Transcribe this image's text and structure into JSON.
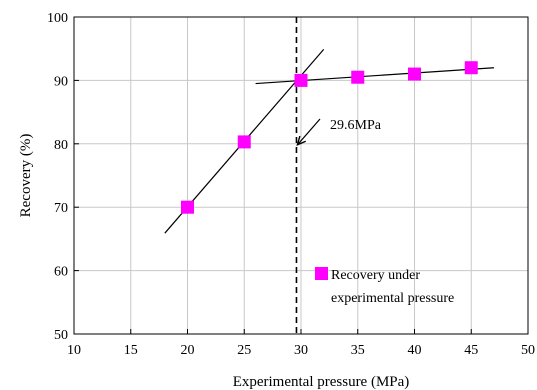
{
  "chart_data": {
    "type": "scatter",
    "xlabel": "Experimental pressure (MPa)",
    "ylabel": "Recovery (%)",
    "xlim": [
      10,
      50
    ],
    "ylim": [
      50,
      100
    ],
    "xticks": [
      "10",
      "15",
      "20",
      "25",
      "30",
      "35",
      "40",
      "45",
      "50"
    ],
    "yticks": [
      "50",
      "60",
      "70",
      "80",
      "90",
      "100"
    ],
    "grid": true,
    "series": [
      {
        "name": "Recovery under experimental pressure",
        "marker": "square",
        "color": "#ff00ff",
        "x": [
          20,
          25,
          30,
          35,
          40,
          45
        ],
        "y": [
          70,
          80.3,
          90,
          90.5,
          91,
          92
        ]
      }
    ],
    "fit_lines": [
      {
        "from": [
          18,
          65.9
        ],
        "to": [
          32,
          94.9
        ]
      },
      {
        "from": [
          26,
          89.5
        ],
        "to": [
          47,
          92
        ]
      }
    ],
    "vertical_line": {
      "x": 29.6,
      "style": "dashed"
    },
    "annotation": {
      "text": "29.6MPa",
      "x": 29.6,
      "y": 80
    },
    "legend": {
      "position": "lower-right",
      "line1": "Recovery under",
      "line2": "experimental pressure"
    }
  }
}
